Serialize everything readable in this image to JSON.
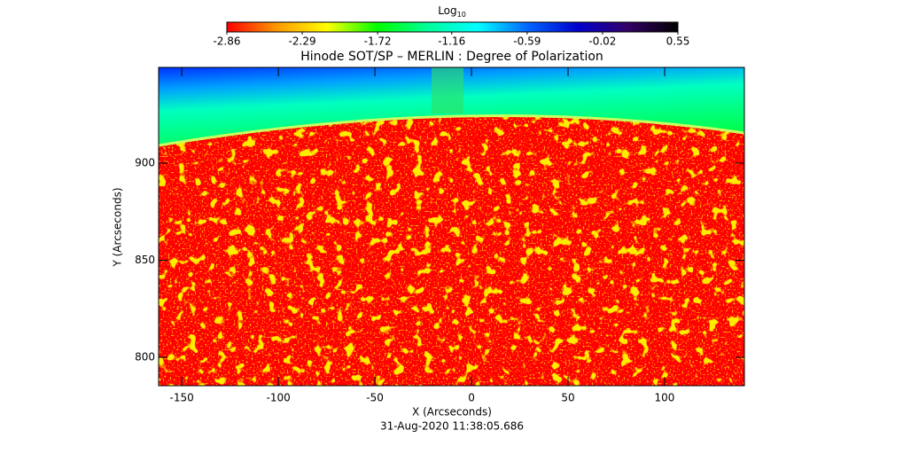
{
  "chart_data": {
    "type": "image",
    "title": "Hinode SOT/SP – MERLIN : Degree of Polarization",
    "xlabel": "X (Arcseconds)",
    "ylabel": "Y (Arcseconds)",
    "footer": "31-Aug-2020 11:38:05.686",
    "colorbar_title": "Log",
    "colorbar_title_subscript": "10",
    "colorbar_lim": [
      -2.86,
      0.55
    ],
    "colorbar_ticks": [
      -2.86,
      -2.29,
      -1.72,
      -1.16,
      -0.59,
      -0.02,
      0.55
    ],
    "colormap": [
      "#ff0000",
      "#ff9900",
      "#ffff00",
      "#00ff00",
      "#00ff99",
      "#00ffff",
      "#0066ff",
      "#0000cc",
      "#330066",
      "#000000"
    ],
    "xlim": [
      -162,
      141.3
    ],
    "xticks": [
      -150,
      -100,
      -50,
      0,
      50,
      100
    ],
    "ylim": [
      785.4,
      949.3
    ],
    "yticks": [
      800,
      850,
      900
    ]
  }
}
